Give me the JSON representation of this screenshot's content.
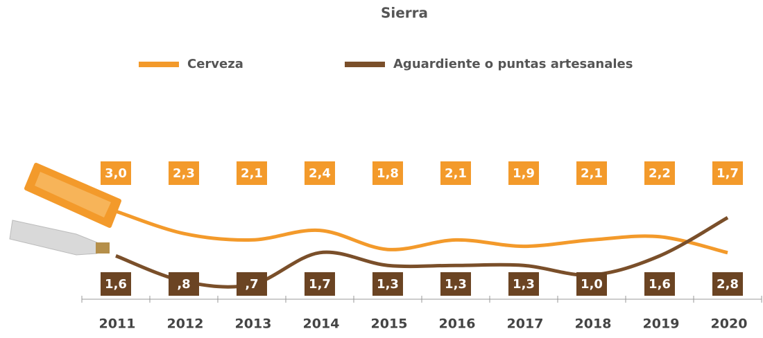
{
  "chart_data": {
    "type": "line",
    "title": "Sierra",
    "categories": [
      "2011",
      "2012",
      "2013",
      "2014",
      "2015",
      "2016",
      "2017",
      "2018",
      "2019",
      "2020"
    ],
    "series": [
      {
        "name": "Cerveza",
        "color": "#f39a2b",
        "values": [
          3.0,
          2.3,
          2.1,
          2.4,
          1.8,
          2.1,
          1.9,
          2.1,
          2.2,
          1.7
        ],
        "value_labels": [
          "3,0",
          "2,3",
          "2,1",
          "2,4",
          "1,8",
          "2,1",
          "1,9",
          "2,1",
          "2,2",
          "1,7"
        ]
      },
      {
        "name": "Aguardiente o puntas artesanales",
        "color": "#7a4f2a",
        "values": [
          1.6,
          0.8,
          0.7,
          1.7,
          1.3,
          1.3,
          1.3,
          1.0,
          1.6,
          2.8
        ],
        "value_labels": [
          "1,6",
          ",8",
          ",7",
          "1,7",
          "1,3",
          "1,3",
          "1,3",
          "1,0",
          "1,6",
          "2,8"
        ]
      }
    ],
    "legend": "top"
  }
}
